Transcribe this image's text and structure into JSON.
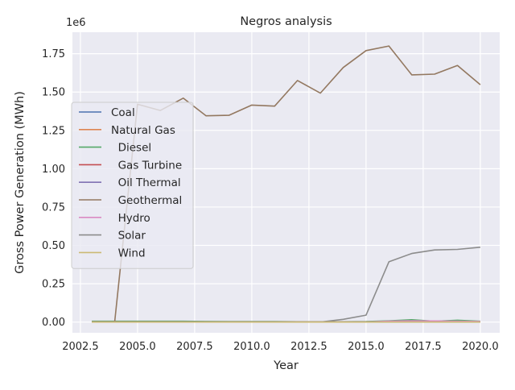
{
  "chart_data": {
    "type": "line",
    "title": "Negros analysis",
    "xlabel": "Year",
    "ylabel": "Gross Power Generation (MWh)",
    "offset_text": "1e6",
    "xlim": [
      2002.15,
      2020.85
    ],
    "ylim": [
      -70000,
      1890000
    ],
    "xticks": [
      2002.5,
      2005.0,
      2007.5,
      2010.0,
      2012.5,
      2015.0,
      2017.5,
      2020.0
    ],
    "xtick_labels": [
      "2002.5",
      "2005.0",
      "2007.5",
      "2010.0",
      "2012.5",
      "2015.0",
      "2017.5",
      "2020.0"
    ],
    "yticks": [
      0,
      250000,
      500000,
      750000,
      1000000,
      1250000,
      1500000,
      1750000
    ],
    "ytick_labels": [
      "0.00",
      "0.25",
      "0.50",
      "0.75",
      "1.00",
      "1.25",
      "1.50",
      "1.75"
    ],
    "grid": true,
    "legend_position": "center-left",
    "x": [
      2003,
      2004,
      2005,
      2006,
      2007,
      2008,
      2009,
      2010,
      2011,
      2012,
      2013,
      2014,
      2015,
      2016,
      2017,
      2018,
      2019,
      2020
    ],
    "series": [
      {
        "name": "Coal",
        "color": "#4c72b0",
        "values": [
          0,
          0,
          0,
          0,
          0,
          0,
          0,
          0,
          0,
          0,
          0,
          0,
          0,
          0,
          0,
          0,
          0,
          0
        ]
      },
      {
        "name": "Natural Gas",
        "color": "#dd8452",
        "values": [
          0,
          0,
          0,
          0,
          0,
          0,
          0,
          0,
          0,
          0,
          0,
          0,
          0,
          0,
          0,
          0,
          0,
          0
        ]
      },
      {
        "name": "  Diesel",
        "color": "#55a868",
        "values": [
          5000,
          5000,
          5000,
          5000,
          5000,
          4000,
          3000,
          3000,
          3000,
          2000,
          2000,
          2000,
          3000,
          8000,
          15000,
          5000,
          12000,
          5000
        ]
      },
      {
        "name": "  Gas Turbine",
        "color": "#c44e52",
        "values": [
          0,
          0,
          0,
          0,
          0,
          0,
          0,
          0,
          0,
          0,
          0,
          0,
          0,
          0,
          0,
          0,
          0,
          0
        ]
      },
      {
        "name": "  Oil Thermal",
        "color": "#8172b3",
        "values": [
          0,
          0,
          0,
          0,
          0,
          0,
          0,
          0,
          0,
          0,
          0,
          0,
          0,
          0,
          0,
          0,
          0,
          0
        ]
      },
      {
        "name": "  Geothermal",
        "color": "#937860",
        "values": [
          0,
          0,
          1420000,
          1380000,
          1460000,
          1345000,
          1348000,
          1415000,
          1408000,
          1575000,
          1493000,
          1660000,
          1770000,
          1800000,
          1612000,
          1617000,
          1673000,
          1548000
        ]
      },
      {
        "name": "  Hydro",
        "color": "#da8bc3",
        "values": [
          0,
          0,
          0,
          0,
          0,
          0,
          0,
          0,
          0,
          0,
          0,
          0,
          0,
          6000,
          8000,
          7000,
          5000,
          4000
        ]
      },
      {
        "name": "  Solar",
        "color": "#8c8c8c",
        "values": [
          0,
          0,
          0,
          0,
          0,
          0,
          0,
          0,
          0,
          0,
          0,
          18000,
          45000,
          393000,
          447000,
          470000,
          474000,
          488000
        ]
      },
      {
        "name": "  Wind",
        "color": "#ccb974",
        "values": [
          0,
          0,
          0,
          0,
          0,
          0,
          0,
          0,
          0,
          0,
          0,
          0,
          0,
          0,
          0,
          0,
          0,
          0
        ]
      }
    ]
  }
}
